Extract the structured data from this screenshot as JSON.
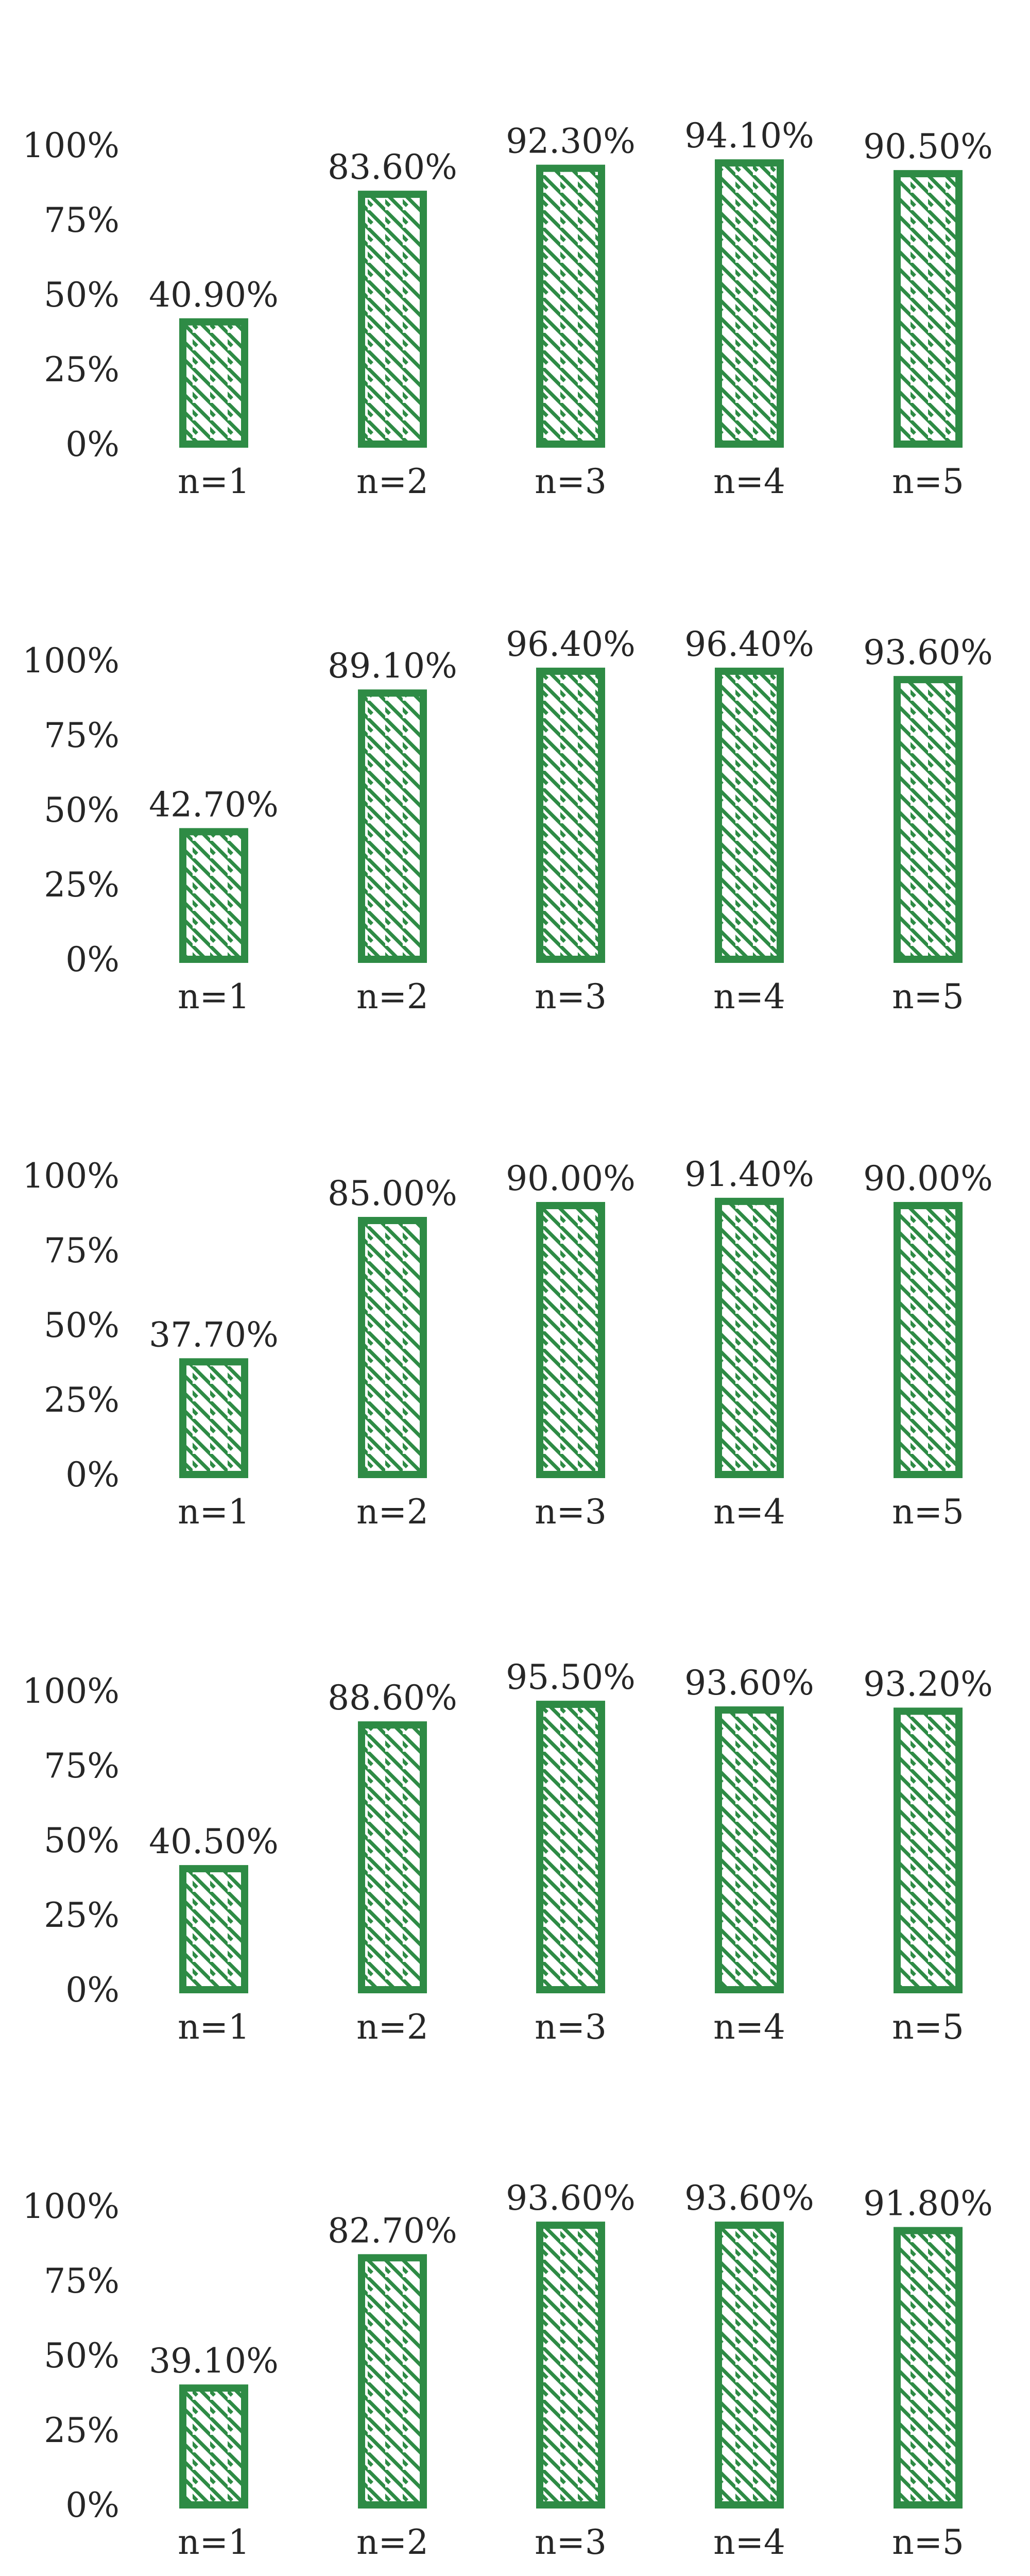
{
  "colors": {
    "bar_edge": "#2e8b45",
    "hatch": "#2e8b45",
    "text": "#262626",
    "background": "#ffffff"
  },
  "chart_data": [
    {
      "type": "bar",
      "categories": [
        "n=1",
        "n=2",
        "n=3",
        "n=4",
        "n=5"
      ],
      "values": [
        40.9,
        83.6,
        92.3,
        94.1,
        90.5
      ],
      "data_labels": [
        "40.90%",
        "83.60%",
        "92.30%",
        "94.10%",
        "90.50%"
      ],
      "yticks": [
        "0%",
        "25%",
        "50%",
        "75%",
        "100%"
      ],
      "ylim": [
        0,
        100
      ],
      "grid": false,
      "fill": "diagonal-hatch"
    },
    {
      "type": "bar",
      "categories": [
        "n=1",
        "n=2",
        "n=3",
        "n=4",
        "n=5"
      ],
      "values": [
        42.7,
        89.1,
        96.4,
        96.4,
        93.6
      ],
      "data_labels": [
        "42.70%",
        "89.10%",
        "96.40%",
        "96.40%",
        "93.60%"
      ],
      "yticks": [
        "0%",
        "25%",
        "50%",
        "75%",
        "100%"
      ],
      "ylim": [
        0,
        100
      ],
      "grid": false,
      "fill": "diagonal-hatch"
    },
    {
      "type": "bar",
      "categories": [
        "n=1",
        "n=2",
        "n=3",
        "n=4",
        "n=5"
      ],
      "values": [
        37.7,
        85.0,
        90.0,
        91.4,
        90.0
      ],
      "data_labels": [
        "37.70%",
        "85.00%",
        "90.00%",
        "91.40%",
        "90.00%"
      ],
      "yticks": [
        "0%",
        "25%",
        "50%",
        "75%",
        "100%"
      ],
      "ylim": [
        0,
        100
      ],
      "grid": false,
      "fill": "diagonal-hatch"
    },
    {
      "type": "bar",
      "categories": [
        "n=1",
        "n=2",
        "n=3",
        "n=4",
        "n=5"
      ],
      "values": [
        40.5,
        88.6,
        95.5,
        93.6,
        93.2
      ],
      "data_labels": [
        "40.50%",
        "88.60%",
        "95.50%",
        "93.60%",
        "93.20%"
      ],
      "yticks": [
        "0%",
        "25%",
        "50%",
        "75%",
        "100%"
      ],
      "ylim": [
        0,
        100
      ],
      "grid": false,
      "fill": "diagonal-hatch"
    },
    {
      "type": "bar",
      "categories": [
        "n=1",
        "n=2",
        "n=3",
        "n=4",
        "n=5"
      ],
      "values": [
        39.1,
        82.7,
        93.6,
        93.6,
        91.8
      ],
      "data_labels": [
        "39.10%",
        "82.70%",
        "93.60%",
        "93.60%",
        "91.80%"
      ],
      "yticks": [
        "0%",
        "25%",
        "50%",
        "75%",
        "100%"
      ],
      "ylim": [
        0,
        100
      ],
      "grid": false,
      "fill": "diagonal-hatch"
    }
  ]
}
